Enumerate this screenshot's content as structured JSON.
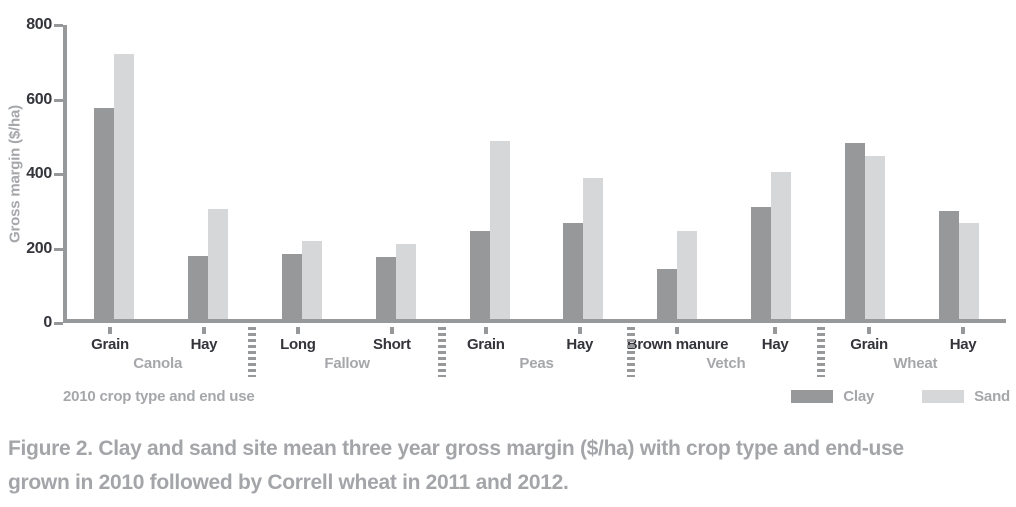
{
  "chart_data": {
    "type": "bar",
    "title": "",
    "ylabel": "Gross margin ($/ha)",
    "xlabel": "2010 crop type and end use",
    "ylim": [
      0,
      800
    ],
    "yticks_desc": [
      800,
      600,
      400,
      200,
      0
    ],
    "grid": "off",
    "legend_position": "bottom-right",
    "series": [
      "Clay",
      "Sand"
    ],
    "series_colors": {
      "clay": "#97989a",
      "sand": "#d6d7d9"
    },
    "groups": [
      {
        "label": "Canola",
        "categories": [
          {
            "label": "Grain",
            "clay": 575,
            "sand": 720
          },
          {
            "label": "Hay",
            "clay": 172,
            "sand": 300
          }
        ]
      },
      {
        "label": "Fallow",
        "categories": [
          {
            "label": "Long",
            "clay": 176,
            "sand": 212
          },
          {
            "label": "Short",
            "clay": 170,
            "sand": 205
          }
        ]
      },
      {
        "label": "Peas",
        "categories": [
          {
            "label": "Grain",
            "clay": 240,
            "sand": 485
          },
          {
            "label": "Hay",
            "clay": 262,
            "sand": 385
          }
        ]
      },
      {
        "label": "Vetch",
        "categories": [
          {
            "label": "Brown manure",
            "clay": 135,
            "sand": 240
          },
          {
            "label": "Hay",
            "clay": 305,
            "sand": 400
          }
        ]
      },
      {
        "label": "Wheat",
        "categories": [
          {
            "label": "Grain",
            "clay": 480,
            "sand": 443
          },
          {
            "label": "Hay",
            "clay": 295,
            "sand": 260
          }
        ]
      }
    ]
  },
  "legend": {
    "items": [
      {
        "label": "Clay",
        "color": "#97989a"
      },
      {
        "label": "Sand",
        "color": "#d6d7d9"
      }
    ]
  },
  "caption": {
    "line1": "Figure 2. Clay and sand site mean three year gross margin ($/ha) with crop type and end-use",
    "line2": "grown in 2010 followed by Correll wheat in 2011 and 2012."
  },
  "colors": {
    "axis": "#97989a",
    "dark_text": "#34353b",
    "gray_text": "#a5a7aa",
    "caption_text": "#a3a5a8"
  }
}
